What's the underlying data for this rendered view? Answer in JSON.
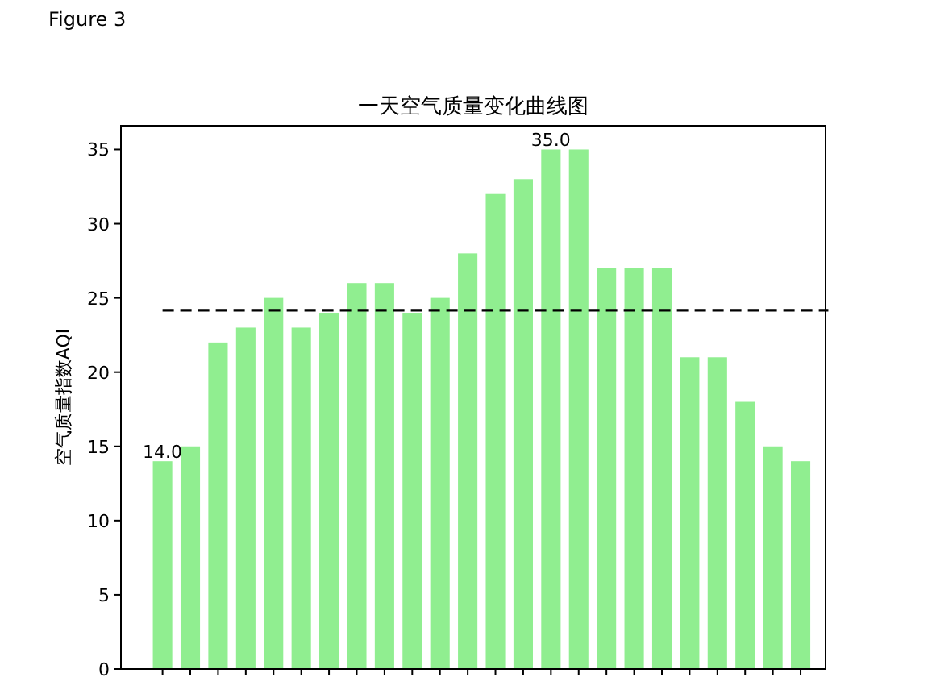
{
  "chart_data": {
    "type": "bar",
    "title": "一天空气质量变化曲线图",
    "ylabel": "空气质量指数AQI",
    "annotations": [
      "Figure 3"
    ],
    "categories": [
      null,
      null,
      null,
      null,
      null,
      null,
      null,
      null,
      null,
      null,
      null,
      null,
      null,
      null,
      null,
      null,
      null,
      null,
      null,
      null,
      null,
      null,
      null,
      null
    ],
    "values": [
      14,
      15,
      22,
      23,
      25,
      23,
      24,
      26,
      26,
      24,
      25,
      28,
      32,
      33,
      35,
      35,
      27,
      27,
      27,
      21,
      21,
      18,
      15,
      14
    ],
    "value_labels": [
      "14.0",
      null,
      null,
      null,
      null,
      null,
      null,
      null,
      null,
      null,
      null,
      null,
      null,
      null,
      "35.0",
      null,
      null,
      null,
      null,
      null,
      null,
      null,
      null,
      null
    ],
    "color": "#90ee90",
    "ylim": [
      0,
      36.6
    ],
    "yticks": [
      0,
      5,
      10,
      15,
      20,
      25,
      30,
      35
    ],
    "ref_lines": [
      {
        "axis": "y",
        "value": 24.17,
        "color": "#000000",
        "line_style": "dashed"
      }
    ],
    "grid": false
  }
}
